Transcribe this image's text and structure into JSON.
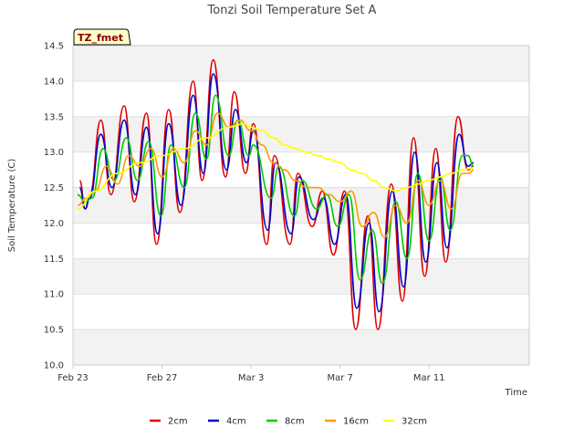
{
  "chart_data": {
    "type": "line",
    "title": "Tonzi Soil Temperature Set A",
    "xlabel": "Time",
    "ylabel": "Soil Temperature (C)",
    "ylim": [
      10.0,
      14.5
    ],
    "xlim_days": [
      0,
      20.5
    ],
    "yticks": [
      "10.0",
      "10.5",
      "11.0",
      "11.5",
      "12.0",
      "12.5",
      "13.0",
      "13.5",
      "14.0",
      "14.5"
    ],
    "xticks": [
      {
        "label": "Feb 23",
        "day": 0
      },
      {
        "label": "Feb 27",
        "day": 4
      },
      {
        "label": "Mar 3",
        "day": 8
      },
      {
        "label": "Mar 7",
        "day": 12
      },
      {
        "label": "Mar 11",
        "day": 16
      }
    ],
    "badge": "TZ_fmet",
    "legend_position": "bottom-center",
    "x_unit": "days since Feb 23",
    "series": [
      {
        "name": "2cm",
        "color": "#dd0000",
        "x": [
          0.3,
          0.55,
          0.75,
          1.25,
          1.7,
          2.3,
          2.75,
          3.3,
          3.75,
          4.3,
          4.8,
          5.4,
          5.8,
          6.3,
          6.85,
          7.25,
          7.75,
          8.1,
          8.7,
          9.05,
          9.75,
          10.1,
          10.75,
          11.2,
          11.7,
          12.2,
          12.7,
          13.25,
          13.7,
          14.3,
          14.8,
          15.3,
          15.8,
          16.3,
          16.75,
          17.3,
          17.75,
          18.0
        ],
        "y": [
          12.6,
          12.2,
          12.4,
          13.45,
          12.4,
          13.65,
          12.3,
          13.55,
          11.7,
          13.6,
          12.15,
          14.0,
          12.6,
          14.3,
          12.65,
          13.85,
          12.7,
          13.4,
          11.7,
          12.95,
          11.7,
          12.7,
          11.95,
          12.45,
          11.55,
          12.45,
          10.5,
          12.1,
          10.5,
          12.55,
          10.9,
          13.2,
          11.25,
          13.05,
          11.45,
          13.5,
          12.75,
          12.8
        ]
      },
      {
        "name": "4cm",
        "color": "#0000cc",
        "x": [
          0.3,
          0.55,
          0.75,
          1.25,
          1.75,
          2.3,
          2.8,
          3.3,
          3.8,
          4.3,
          4.85,
          5.4,
          5.85,
          6.3,
          6.9,
          7.3,
          7.8,
          8.1,
          8.75,
          9.1,
          9.8,
          10.15,
          10.8,
          11.25,
          11.75,
          12.25,
          12.75,
          13.3,
          13.75,
          14.35,
          14.85,
          15.35,
          15.85,
          16.35,
          16.8,
          17.35,
          17.75,
          18.0
        ],
        "y": [
          12.5,
          12.2,
          12.35,
          13.25,
          12.5,
          13.45,
          12.4,
          13.35,
          11.85,
          13.4,
          12.25,
          13.8,
          12.7,
          14.1,
          12.75,
          13.6,
          12.85,
          13.3,
          11.9,
          12.85,
          11.85,
          12.65,
          12.05,
          12.35,
          11.7,
          12.4,
          10.8,
          12.0,
          10.75,
          12.45,
          11.1,
          13.0,
          11.45,
          12.85,
          11.65,
          13.25,
          12.8,
          12.85
        ]
      },
      {
        "name": "8cm",
        "color": "#00cc00",
        "x": [
          0.2,
          0.55,
          0.85,
          1.35,
          1.85,
          2.4,
          2.9,
          3.4,
          3.95,
          4.4,
          5.0,
          5.5,
          6.0,
          6.4,
          7.0,
          7.4,
          7.9,
          8.1,
          8.9,
          9.25,
          9.95,
          10.3,
          10.95,
          11.4,
          11.9,
          12.4,
          12.9,
          13.45,
          13.9,
          14.5,
          15.0,
          15.5,
          16.0,
          16.5,
          16.95,
          17.5,
          17.75,
          18.0
        ],
        "y": [
          12.4,
          12.3,
          12.35,
          13.05,
          12.6,
          13.2,
          12.6,
          13.15,
          12.1,
          13.1,
          12.5,
          13.55,
          12.9,
          13.8,
          12.95,
          13.45,
          12.95,
          13.1,
          12.35,
          12.8,
          12.1,
          12.6,
          12.2,
          12.4,
          11.95,
          12.4,
          11.2,
          11.9,
          11.15,
          12.3,
          11.5,
          12.7,
          11.75,
          12.65,
          11.9,
          12.95,
          12.95,
          12.8
        ]
      },
      {
        "name": "16cm",
        "color": "#ff9900",
        "x": [
          0.2,
          0.6,
          1.0,
          1.5,
          2.0,
          2.5,
          3.0,
          3.5,
          4.0,
          4.5,
          5.0,
          5.5,
          6.0,
          6.5,
          7.0,
          7.5,
          8.0,
          8.5,
          9.0,
          9.5,
          10.0,
          10.5,
          11.0,
          11.5,
          12.0,
          12.5,
          13.0,
          13.5,
          14.0,
          14.5,
          15.0,
          15.5,
          16.0,
          16.5,
          17.0,
          17.5,
          17.8,
          18.0
        ],
        "y": [
          12.25,
          12.35,
          12.45,
          12.8,
          12.55,
          12.95,
          12.8,
          13.05,
          12.65,
          13.05,
          12.85,
          13.3,
          13.1,
          13.55,
          13.35,
          13.45,
          13.3,
          13.1,
          12.85,
          12.75,
          12.6,
          12.5,
          12.5,
          12.4,
          12.3,
          12.45,
          11.95,
          12.15,
          11.8,
          12.25,
          12.0,
          12.6,
          12.25,
          12.6,
          12.2,
          12.7,
          12.7,
          12.75
        ]
      },
      {
        "name": "32cm",
        "color": "#ffff00",
        "x": [
          0.2,
          1.0,
          2.0,
          3.0,
          4.0,
          5.0,
          6.0,
          7.0,
          7.7,
          8.0,
          8.5,
          9.0,
          9.5,
          10.0,
          10.5,
          11.0,
          11.5,
          12.0,
          12.5,
          13.0,
          13.5,
          14.0,
          14.5,
          15.0,
          15.5,
          16.0,
          16.5,
          17.0,
          17.5,
          18.0
        ],
        "y": [
          12.2,
          12.45,
          12.7,
          12.85,
          12.95,
          13.05,
          13.2,
          13.35,
          13.4,
          13.35,
          13.3,
          13.2,
          13.1,
          13.05,
          13.0,
          12.95,
          12.9,
          12.85,
          12.75,
          12.7,
          12.6,
          12.5,
          12.45,
          12.5,
          12.55,
          12.6,
          12.65,
          12.7,
          12.75,
          12.78
        ]
      }
    ]
  }
}
